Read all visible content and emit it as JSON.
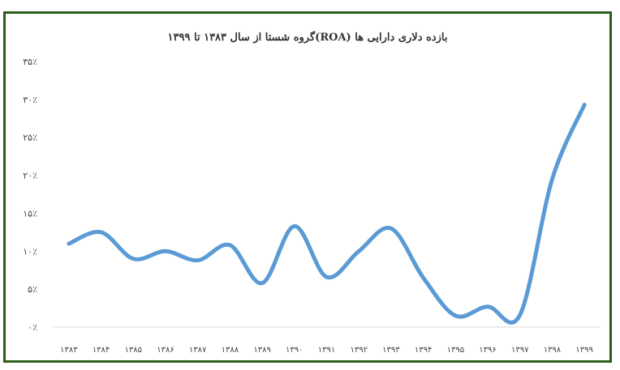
{
  "chart_data": {
    "type": "line",
    "title": "بازده دلاری دارایی ها (ROA)گروه شستا از سال ۱۳۸۳ تا ۱۳۹۹",
    "xlabel": "",
    "ylabel": "",
    "categories": [
      "۱۳۸۳",
      "۱۳۸۴",
      "۱۳۸۵",
      "۱۳۸۶",
      "۱۳۸۷",
      "۱۳۸۸",
      "۱۳۸۹",
      "۱۳۹۰",
      "۱۳۹۱",
      "۱۳۹۲",
      "۱۳۹۳",
      "۱۳۹۴",
      "۱۳۹۵",
      "۱۳۹۶",
      "۱۳۹۷",
      "۱۳۹۸",
      "۱۳۹۹"
    ],
    "series": [
      {
        "values": [
          11,
          12.5,
          9,
          10,
          8.8,
          10.8,
          5.8,
          13.3,
          6.6,
          10,
          13,
          6.5,
          1.5,
          2.7,
          1.6,
          19.5,
          29.3
        ]
      }
    ],
    "ylim": [
      0,
      35
    ],
    "yticks": [
      {
        "value": 0,
        "label": "۰٪"
      },
      {
        "value": 5,
        "label": "۵٪"
      },
      {
        "value": 10,
        "label": "۱۰٪"
      },
      {
        "value": 15,
        "label": "۱۵٪"
      },
      {
        "value": 20,
        "label": "۲۰٪"
      },
      {
        "value": 25,
        "label": "۲۵٪"
      },
      {
        "value": 30,
        "label": "۳۰٪"
      },
      {
        "value": 35,
        "label": "۳۵٪"
      }
    ],
    "grid": false,
    "legend": "none",
    "line_color": "#5b9bd5"
  }
}
